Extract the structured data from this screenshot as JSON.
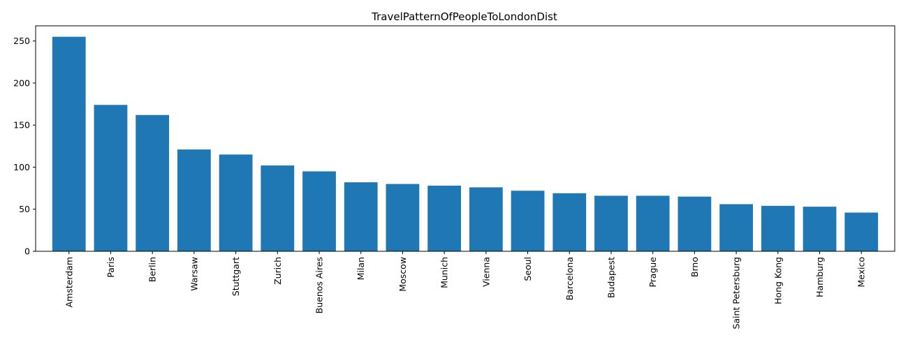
{
  "chart_data": {
    "type": "bar",
    "title": "TravelPatternOfPeopleToLondonDist",
    "xlabel": "",
    "ylabel": "",
    "categories": [
      "Amsterdam",
      "Paris",
      "Berlin",
      "Warsaw",
      "Stuttgart",
      "Zurich",
      "Buenos Aires",
      "Milan",
      "Moscow",
      "Munich",
      "Vienna",
      "Seoul",
      "Barcelona",
      "Budapest",
      "Prague",
      "Brno",
      "Saint Petersburg",
      "Hong Kong",
      "Hamburg",
      "Mexico"
    ],
    "values": [
      255,
      174,
      162,
      121,
      115,
      102,
      95,
      82,
      80,
      78,
      76,
      72,
      69,
      66,
      66,
      65,
      56,
      54,
      53,
      46
    ],
    "ylim": [
      0,
      268
    ],
    "yticks": [
      0,
      50,
      100,
      150,
      200,
      250
    ],
    "bar_color": "#1f77b4",
    "grid": false,
    "legend": "none"
  }
}
